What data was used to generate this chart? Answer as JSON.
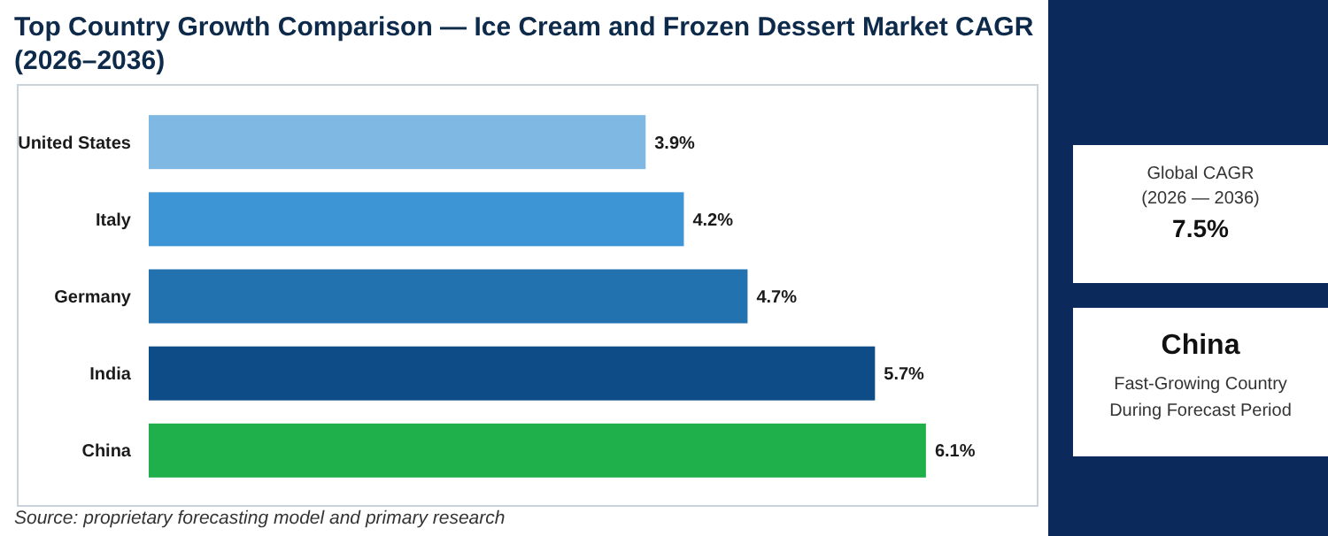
{
  "chart_data": {
    "type": "bar",
    "orientation": "horizontal",
    "title": "Top Country Growth Comparison — Ice Cream and Frozen Dessert Market CAGR (2026–2036)",
    "categories": [
      "United States",
      "Italy",
      "Germany",
      "India",
      "China"
    ],
    "values": [
      3.9,
      4.2,
      4.7,
      5.7,
      6.1
    ],
    "colors": [
      "#7fb9e3",
      "#3d95d6",
      "#2272b0",
      "#0d4c86",
      "#20b04b"
    ],
    "value_labels": [
      "3.9%",
      "4.2%",
      "4.7%",
      "5.7%",
      "6.1%"
    ],
    "annotations": [
      "Source: proprietary forecasting model and primary research",
      "Global CAGR",
      "(2026 — 2036)",
      "7.5%",
      "China",
      "Fast-Growing Country",
      "During Forecast Period"
    ]
  }
}
